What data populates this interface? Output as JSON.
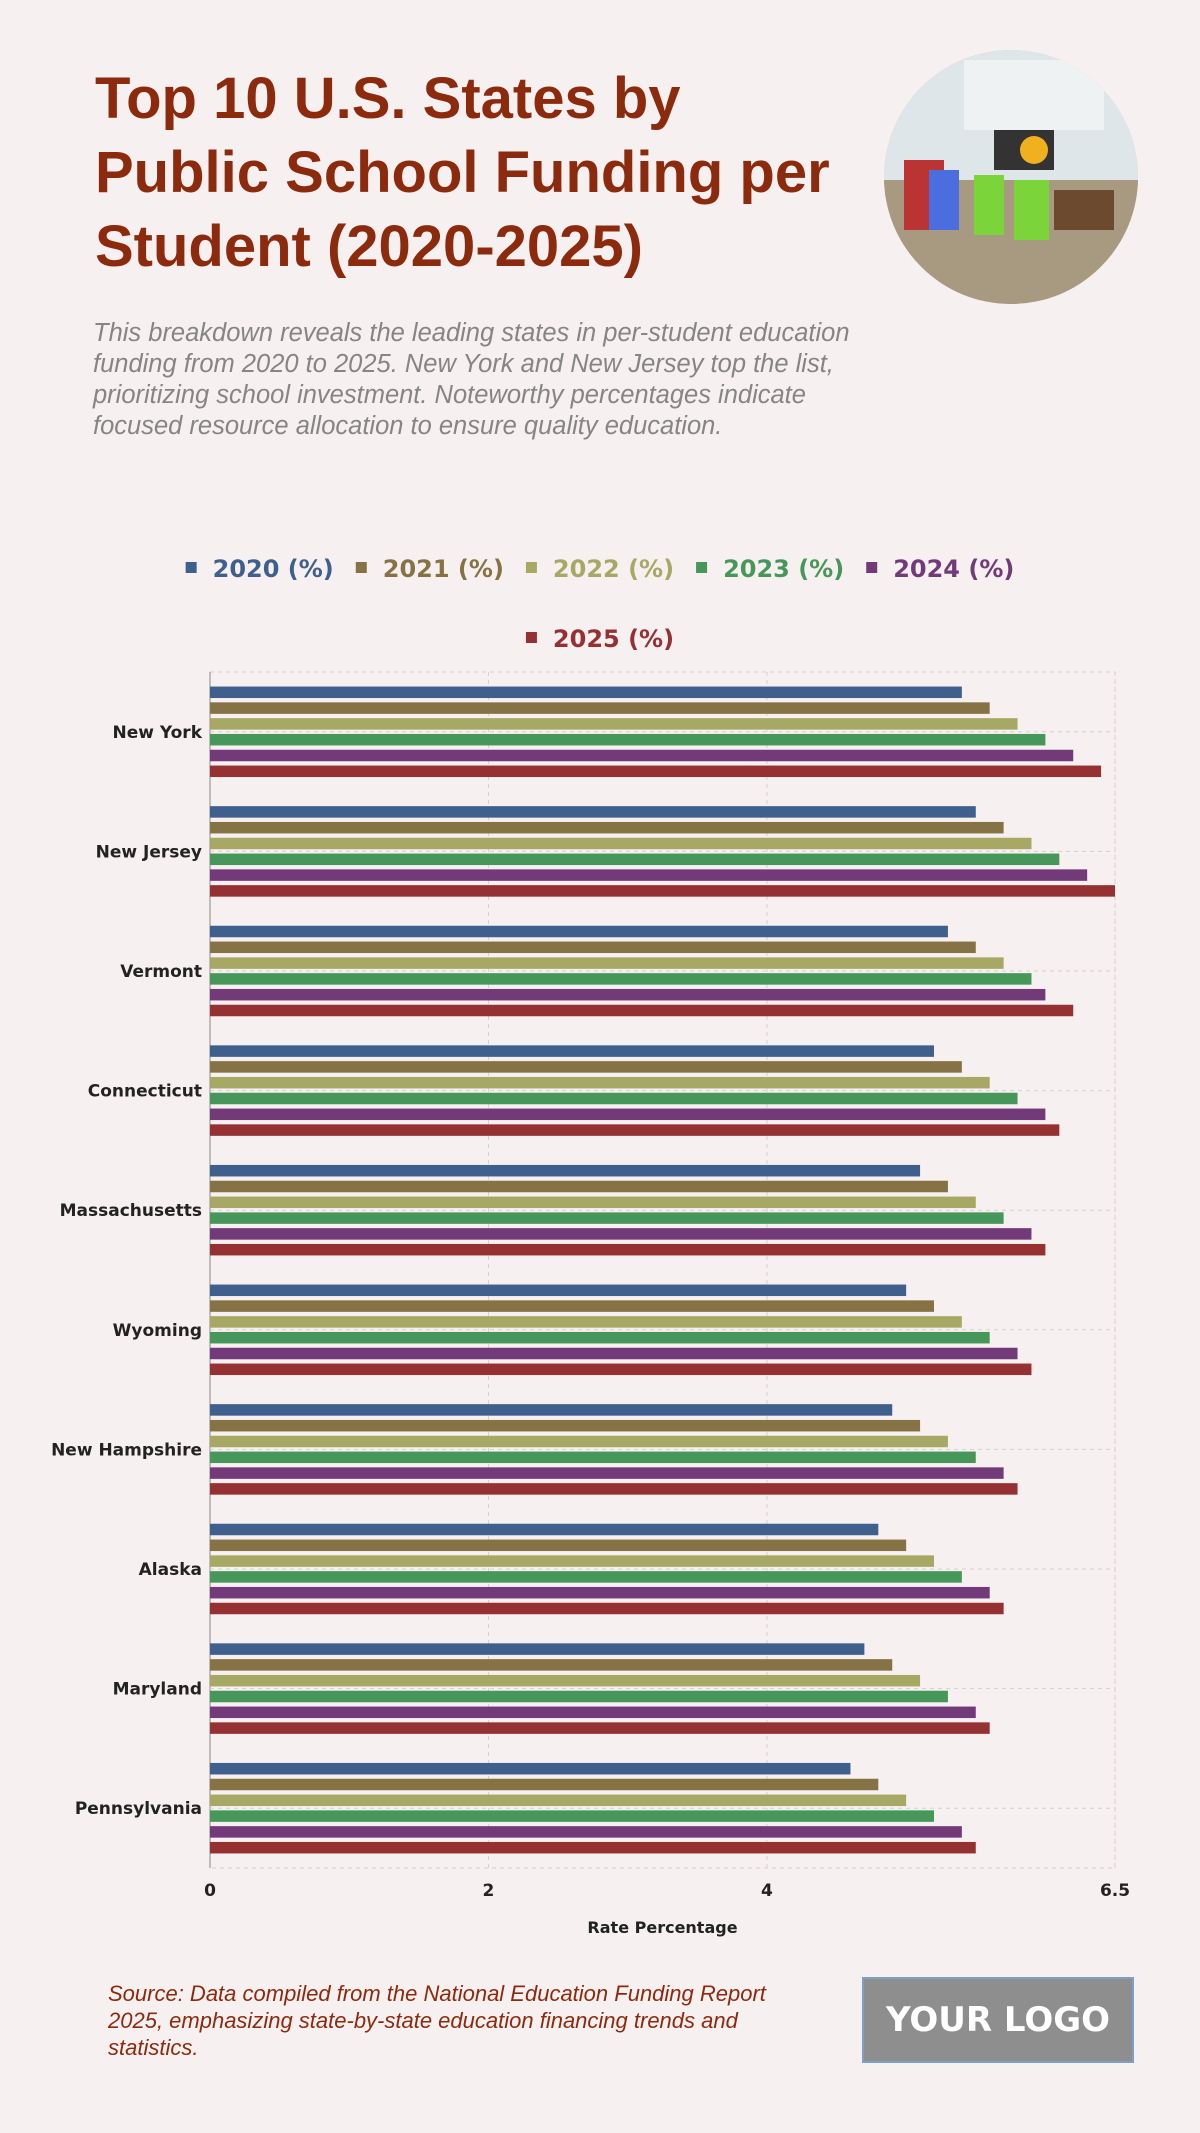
{
  "header": {
    "title": "Top 10 U.S. States by Public School Funding per Student (2020-2025)",
    "subtitle": "This breakdown reveals the leading states in per-student education funding from 2020 to 2025. New York and New Jersey top the list, prioritizing school investment. Noteworthy percentages indicate focused resource allocation to ensure quality education."
  },
  "footer": {
    "source": "Source: Data compiled from the National Education Funding Report 2025, emphasizing state-by-state education financing trends and statistics.",
    "logo": "YOUR LOGO"
  },
  "chart_data": {
    "type": "bar",
    "orientation": "horizontal",
    "categories": [
      "New York",
      "New Jersey",
      "Vermont",
      "Connecticut",
      "Massachusetts",
      "Wyoming",
      "New Hampshire",
      "Alaska",
      "Maryland",
      "Pennsylvania"
    ],
    "series": [
      {
        "name": "2020 (%)",
        "color": "#3f5f8c",
        "values": [
          5.4,
          5.5,
          5.3,
          5.2,
          5.1,
          5.0,
          4.9,
          4.8,
          4.7,
          4.6
        ]
      },
      {
        "name": "2021 (%)",
        "color": "#857345",
        "values": [
          5.6,
          5.7,
          5.5,
          5.4,
          5.3,
          5.2,
          5.1,
          5.0,
          4.9,
          4.8
        ]
      },
      {
        "name": "2022 (%)",
        "color": "#a8a865",
        "values": [
          5.8,
          5.9,
          5.7,
          5.6,
          5.5,
          5.4,
          5.3,
          5.2,
          5.1,
          5.0
        ]
      },
      {
        "name": "2023 (%)",
        "color": "#47975a",
        "values": [
          6.0,
          6.1,
          5.9,
          5.8,
          5.7,
          5.6,
          5.5,
          5.4,
          5.3,
          5.2
        ]
      },
      {
        "name": "2024 (%)",
        "color": "#733a7a",
        "values": [
          6.2,
          6.3,
          6.0,
          6.0,
          5.9,
          5.8,
          5.7,
          5.6,
          5.5,
          5.4
        ]
      },
      {
        "name": "2025 (%)",
        "color": "#953133",
        "values": [
          6.4,
          6.5,
          6.2,
          6.1,
          6.0,
          5.9,
          5.8,
          5.7,
          5.6,
          5.5
        ]
      }
    ],
    "xlabel": "Rate Percentage",
    "ylabel": "",
    "xlim": [
      0,
      6.5
    ],
    "xticks": [
      "0",
      "2",
      "4",
      "6.5"
    ],
    "grid": true,
    "legend_position": "top"
  }
}
